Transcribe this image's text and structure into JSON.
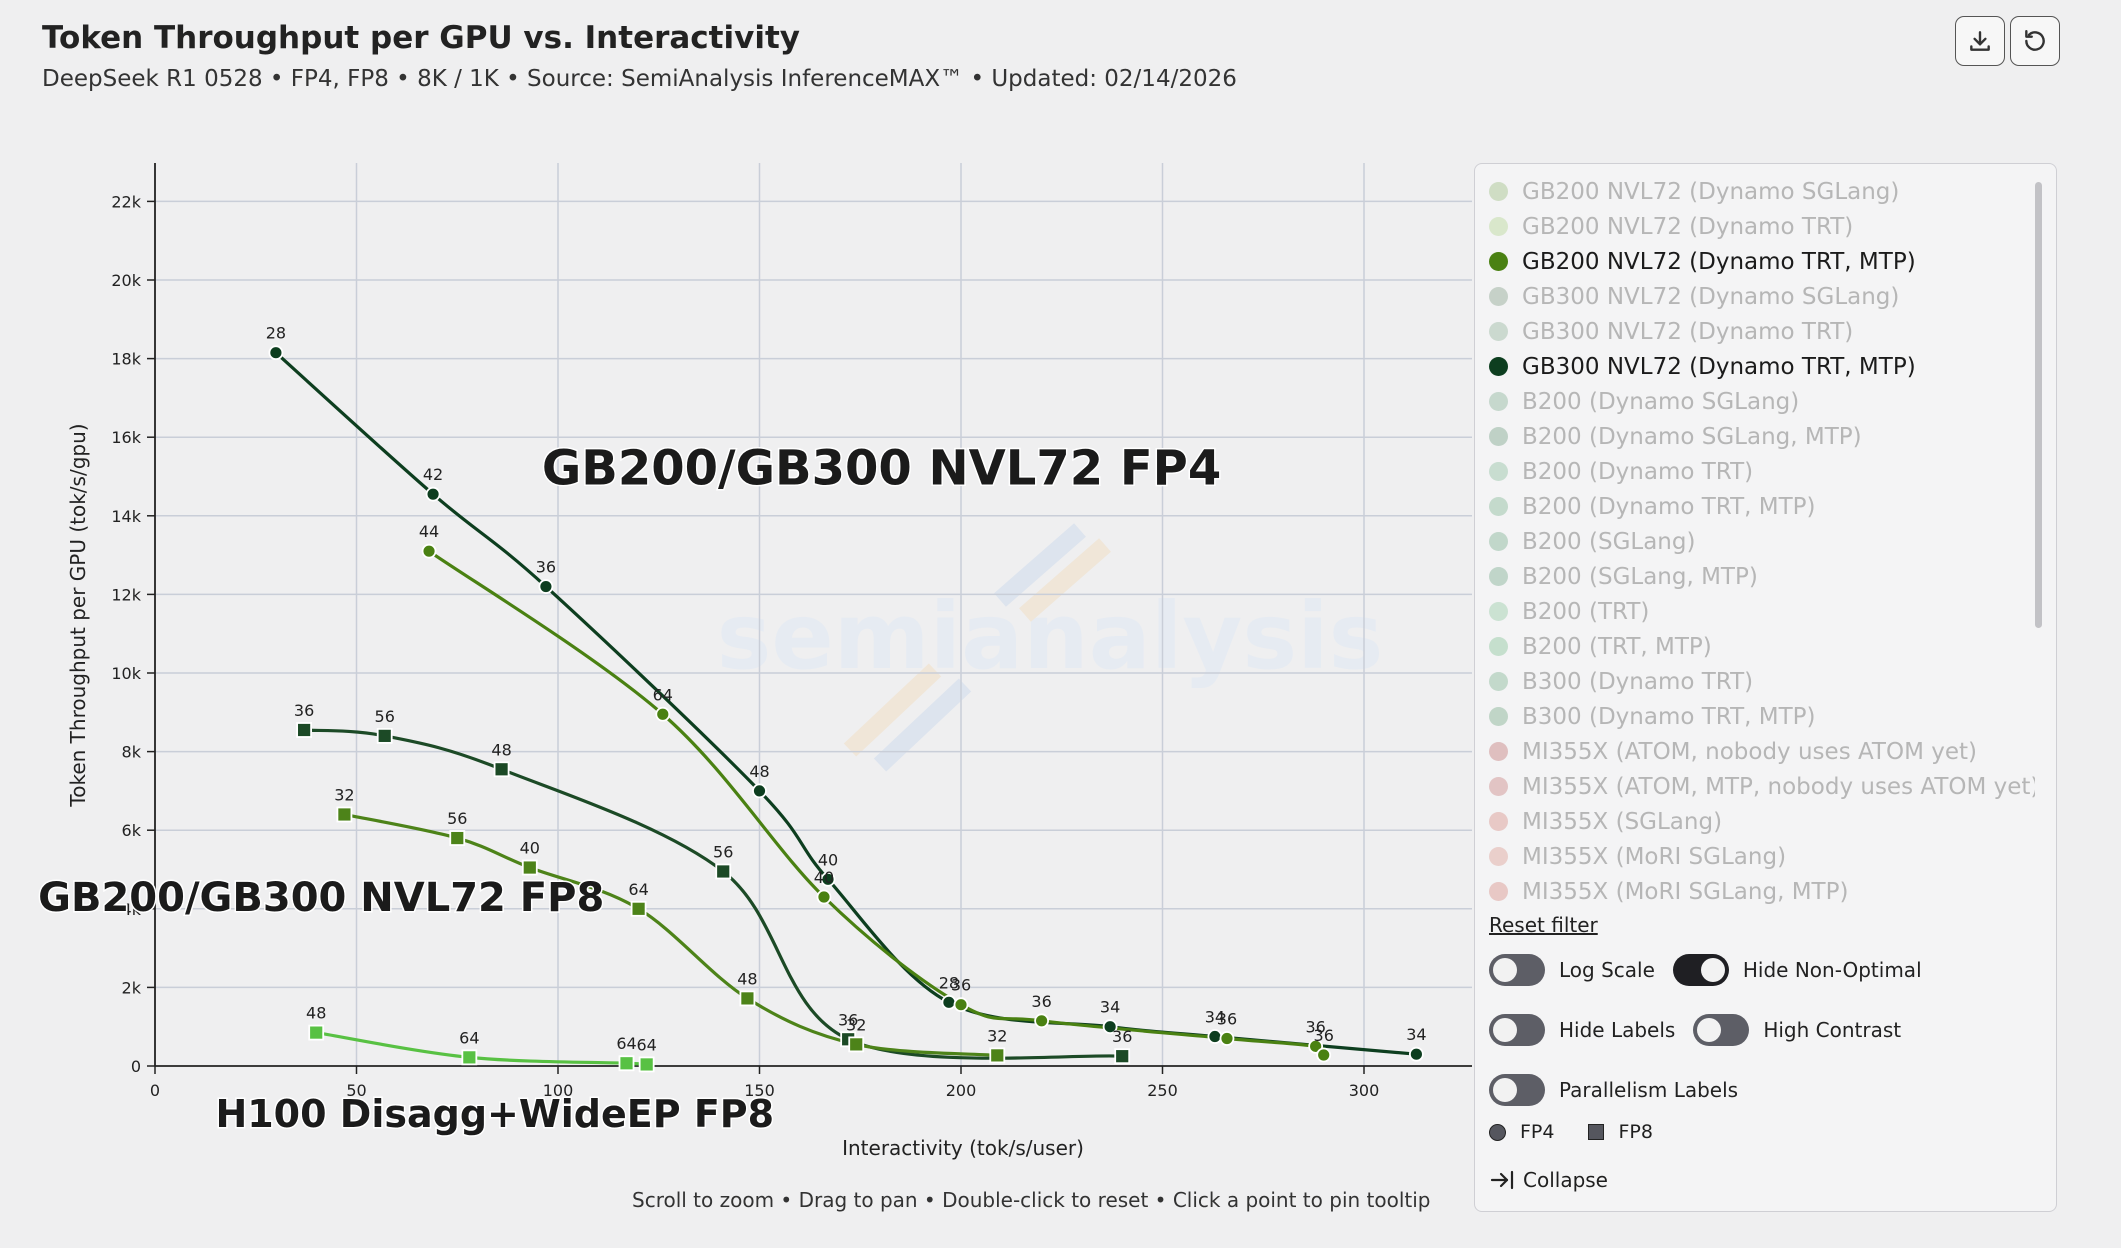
{
  "header": {
    "title": "Token Throughput per GPU vs. Interactivity",
    "subtitle": "DeepSeek R1 0528 • FP4, FP8 • 8K / 1K • Source: SemiAnalysis InferenceMAX™ • Updated: 02/14/2026",
    "download_icon": "download-icon",
    "reset_icon": "reset-icon"
  },
  "hint": "Scroll to zoom • Drag to pan • Double-click to reset • Click a point to pin tooltip",
  "watermark": "semianalysis",
  "colors": {
    "gb300_fp4": "#0d3e1f",
    "gb200_fp4": "#4a8112",
    "gb300_fp8": "#1c4a26",
    "gb200_fp8": "#4d8319",
    "h100": "#58c143"
  },
  "chart_data": {
    "type": "line",
    "title": "Token Throughput per GPU vs. Interactivity",
    "xlabel": "Interactivity (tok/s/user)",
    "ylabel": "Token Throughput per GPU (tok/s/gpu)",
    "xlim": [
      0,
      330
    ],
    "ylim": [
      0,
      23000
    ],
    "x_ticks": [
      0,
      50,
      100,
      150,
      200,
      250,
      300
    ],
    "y_ticks": [
      0,
      2000,
      4000,
      6000,
      8000,
      10000,
      12000,
      14000,
      16000,
      18000,
      20000,
      22000
    ],
    "y_tick_labels": [
      "0",
      "2k",
      "4k",
      "6k",
      "8k",
      "10k",
      "12k",
      "14k",
      "16k",
      "18k",
      "20k",
      "22k"
    ],
    "grid": true,
    "annotations": [
      {
        "text": "GB200/GB300 NVL72 FP4",
        "x": 96,
        "y": 14800
      },
      {
        "text": "GB200/GB300 NVL72 FP8",
        "x": -29,
        "y": 3950
      },
      {
        "text": "H100 Disagg+WideEP FP8",
        "x": 15,
        "y": -1550
      }
    ],
    "series": [
      {
        "name": "GB300 NVL72 (Dynamo TRT, MTP)",
        "marker": "circle",
        "color": "#0d3e1f",
        "points": [
          {
            "x": 30,
            "y": 18150,
            "label": "28"
          },
          {
            "x": 69,
            "y": 14550,
            "label": "42"
          },
          {
            "x": 97,
            "y": 12200,
            "label": "36"
          },
          {
            "x": 150,
            "y": 7000,
            "label": "48"
          },
          {
            "x": 167,
            "y": 4750,
            "label": "40"
          },
          {
            "x": 197,
            "y": 1620,
            "label": "28"
          },
          {
            "x": 237,
            "y": 1000,
            "label": "34"
          },
          {
            "x": 263,
            "y": 750,
            "label": "34"
          },
          {
            "x": 313,
            "y": 300,
            "label": "34"
          }
        ]
      },
      {
        "name": "GB200 NVL72 (Dynamo TRT, MTP)",
        "marker": "circle",
        "color": "#4a8112",
        "points": [
          {
            "x": 68,
            "y": 13100,
            "label": "44"
          },
          {
            "x": 126,
            "y": 8950,
            "label": "64"
          },
          {
            "x": 166,
            "y": 4300,
            "label": "40"
          },
          {
            "x": 200,
            "y": 1560,
            "label": "36"
          },
          {
            "x": 220,
            "y": 1150,
            "label": "36"
          },
          {
            "x": 266,
            "y": 700,
            "label": "36"
          },
          {
            "x": 288,
            "y": 500,
            "label": "36"
          },
          {
            "x": 290,
            "y": 280,
            "label": "36"
          }
        ]
      },
      {
        "name": "GB300 NVL72 FP8",
        "marker": "square",
        "color": "#1c4a26",
        "points": [
          {
            "x": 37,
            "y": 8550,
            "label": "36"
          },
          {
            "x": 57,
            "y": 8400,
            "label": "56"
          },
          {
            "x": 86,
            "y": 7550,
            "label": "48"
          },
          {
            "x": 141,
            "y": 4950,
            "label": "56"
          },
          {
            "x": 172,
            "y": 680,
            "label": "36"
          },
          {
            "x": 240,
            "y": 250,
            "label": "36"
          }
        ]
      },
      {
        "name": "GB200 NVL72 FP8",
        "marker": "square",
        "color": "#4d8319",
        "points": [
          {
            "x": 47,
            "y": 6400,
            "label": "32"
          },
          {
            "x": 75,
            "y": 5800,
            "label": "56"
          },
          {
            "x": 93,
            "y": 5050,
            "label": "40"
          },
          {
            "x": 120,
            "y": 4000,
            "label": "64"
          },
          {
            "x": 147,
            "y": 1720,
            "label": "48"
          },
          {
            "x": 174,
            "y": 550,
            "label": "32"
          },
          {
            "x": 209,
            "y": 270,
            "label": "32"
          }
        ]
      },
      {
        "name": "H100 Disagg+WideEP FP8",
        "marker": "square",
        "color": "#58c143",
        "points": [
          {
            "x": 40,
            "y": 850,
            "label": "48"
          },
          {
            "x": 78,
            "y": 220,
            "label": "64"
          },
          {
            "x": 117,
            "y": 70,
            "label": "64"
          },
          {
            "x": 122,
            "y": 40,
            "label": "64"
          }
        ]
      }
    ]
  },
  "legend": {
    "items": [
      {
        "label": "GB200 NVL72 (Dynamo SGLang)",
        "color": "#8ab26a",
        "active": false
      },
      {
        "label": "GB200 NVL72 (Dynamo TRT)",
        "color": "#a6cf7d",
        "active": false
      },
      {
        "label": "GB200 NVL72 (Dynamo TRT, MTP)",
        "color": "#4a8112",
        "active": true
      },
      {
        "label": "GB300 NVL72 (Dynamo SGLang)",
        "color": "#6f8f75",
        "active": false
      },
      {
        "label": "GB300 NVL72 (Dynamo TRT)",
        "color": "#7fa68a",
        "active": false
      },
      {
        "label": "GB300 NVL72 (Dynamo TRT, MTP)",
        "color": "#0d3e1f",
        "active": true
      },
      {
        "label": "B200 (Dynamo SGLang)",
        "color": "#6fa284",
        "active": false
      },
      {
        "label": "B200 (Dynamo SGLang, MTP)",
        "color": "#5d8f71",
        "active": false
      },
      {
        "label": "B200 (Dynamo TRT)",
        "color": "#76b38c",
        "active": false
      },
      {
        "label": "B200 (Dynamo TRT, MTP)",
        "color": "#6aa881",
        "active": false
      },
      {
        "label": "B200 (SGLang)",
        "color": "#61a07a",
        "active": false
      },
      {
        "label": "B200 (SGLang, MTP)",
        "color": "#5f9a77",
        "active": false
      },
      {
        "label": "B200 (TRT)",
        "color": "#7fc092",
        "active": false
      },
      {
        "label": "B200 (TRT, MTP)",
        "color": "#6db685",
        "active": false
      },
      {
        "label": "B300 (Dynamo TRT)",
        "color": "#66a77d",
        "active": false
      },
      {
        "label": "B300 (Dynamo TRT, MTP)",
        "color": "#5e9b73",
        "active": false
      },
      {
        "label": "MI355X (ATOM, nobody uses ATOM yet)",
        "color": "#b85b5b",
        "active": false
      },
      {
        "label": "MI355X (ATOM, MTP, nobody uses ATOM yet)",
        "color": "#c06a6a",
        "active": false
      },
      {
        "label": "MI355X (SGLang)",
        "color": "#d0786f",
        "active": false
      },
      {
        "label": "MI355X (MoRI SGLang)",
        "color": "#d88a7e",
        "active": false
      },
      {
        "label": "MI355X (MoRI SGLang, MTP)",
        "color": "#d1766c",
        "active": false
      }
    ],
    "reset_label": "Reset filter",
    "toggles": {
      "log_scale": {
        "label": "Log Scale",
        "on": false
      },
      "hide_non_optimal": {
        "label": "Hide Non-Optimal",
        "on": true
      },
      "hide_labels": {
        "label": "Hide Labels",
        "on": false
      },
      "high_contrast": {
        "label": "High Contrast",
        "on": false
      },
      "parallelism_labels": {
        "label": "Parallelism Labels",
        "on": false
      }
    },
    "shape_key": {
      "fp4": "FP4",
      "fp8": "FP8"
    },
    "collapse_label": "Collapse"
  }
}
